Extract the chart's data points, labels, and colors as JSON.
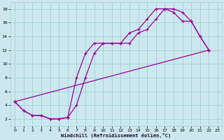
{
  "xlabel": "Windchill (Refroidissement éolien,°C)",
  "bg_color": "#cce8ee",
  "grid_color": "#99cccc",
  "line_color": "#990099",
  "xlim": [
    -0.5,
    23.5
  ],
  "ylim": [
    1.0,
    19.0
  ],
  "xticks": [
    0,
    1,
    2,
    3,
    4,
    5,
    6,
    7,
    8,
    9,
    10,
    11,
    12,
    13,
    14,
    15,
    16,
    17,
    18,
    19,
    20,
    21,
    22,
    23
  ],
  "yticks": [
    2,
    4,
    6,
    8,
    10,
    12,
    14,
    16,
    18
  ],
  "line1_x": [
    0,
    1,
    2,
    3,
    4,
    5,
    6,
    7,
    8,
    9,
    10,
    11,
    12,
    13,
    14,
    15,
    16,
    17,
    18,
    19,
    20,
    21,
    22
  ],
  "line1_y": [
    4.5,
    3.2,
    2.5,
    2.5,
    2.0,
    2.0,
    2.2,
    4.0,
    8.0,
    11.5,
    13.0,
    13.0,
    13.0,
    13.0,
    14.5,
    15.0,
    16.5,
    18.0,
    18.0,
    17.5,
    16.2,
    14.0,
    12.0
  ],
  "line2_x": [
    0,
    1,
    2,
    3,
    4,
    5,
    6,
    7,
    8,
    9,
    10,
    11,
    12,
    13,
    14,
    15,
    16,
    17,
    18,
    19,
    20,
    21,
    22
  ],
  "line2_y": [
    4.5,
    3.2,
    2.5,
    2.5,
    2.0,
    2.0,
    2.2,
    8.0,
    11.5,
    13.0,
    13.0,
    13.0,
    13.0,
    14.5,
    15.0,
    16.5,
    18.0,
    18.0,
    17.5,
    16.2,
    16.2,
    14.0,
    12.0
  ],
  "line3_x": [
    0,
    22
  ],
  "line3_y": [
    4.5,
    12.0
  ]
}
